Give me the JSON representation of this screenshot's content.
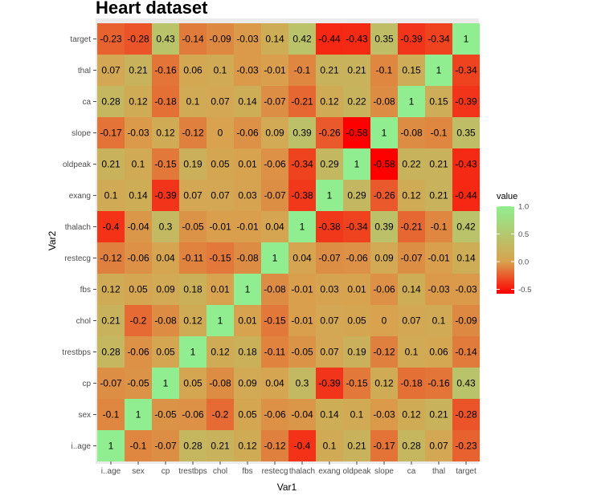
{
  "chart_data": {
    "type": "heatmap",
    "title": "Heart dataset",
    "xlabel": "Var1",
    "ylabel": "Var2",
    "x_categories": [
      "i..age",
      "sex",
      "cp",
      "trestbps",
      "chol",
      "fbs",
      "restecg",
      "thalach",
      "exang",
      "oldpeak",
      "slope",
      "ca",
      "thal",
      "target"
    ],
    "y_categories": [
      "i..age",
      "sex",
      "cp",
      "trestbps",
      "chol",
      "fbs",
      "restecg",
      "thalach",
      "exang",
      "oldpeak",
      "slope",
      "ca",
      "thal",
      "target"
    ],
    "values": [
      [
        1,
        -0.1,
        -0.07,
        0.28,
        0.21,
        0.12,
        -0.12,
        -0.4,
        0.1,
        0.21,
        -0.17,
        0.28,
        0.07,
        -0.23
      ],
      [
        -0.1,
        1,
        -0.05,
        -0.06,
        -0.2,
        0.05,
        -0.06,
        -0.04,
        0.14,
        0.1,
        -0.03,
        0.12,
        0.21,
        -0.28
      ],
      [
        -0.07,
        -0.05,
        1,
        0.05,
        -0.08,
        0.09,
        0.04,
        0.3,
        -0.39,
        -0.15,
        0.12,
        -0.18,
        -0.16,
        0.43
      ],
      [
        0.28,
        -0.06,
        0.05,
        1,
        0.12,
        0.18,
        -0.11,
        -0.05,
        0.07,
        0.19,
        -0.12,
        0.1,
        0.06,
        -0.14
      ],
      [
        0.21,
        -0.2,
        -0.08,
        0.12,
        1,
        0.01,
        -0.15,
        -0.01,
        0.07,
        0.05,
        0,
        0.07,
        0.1,
        -0.09
      ],
      [
        0.12,
        0.05,
        0.09,
        0.18,
        0.01,
        1,
        -0.08,
        -0.01,
        0.03,
        0.01,
        -0.06,
        0.14,
        -0.03,
        -0.03
      ],
      [
        -0.12,
        -0.06,
        0.04,
        -0.11,
        -0.15,
        -0.08,
        1,
        0.04,
        -0.07,
        -0.06,
        0.09,
        -0.07,
        -0.01,
        0.14
      ],
      [
        -0.4,
        -0.04,
        0.3,
        -0.05,
        -0.01,
        -0.01,
        0.04,
        1,
        -0.38,
        -0.34,
        0.39,
        -0.21,
        -0.1,
        0.42
      ],
      [
        0.1,
        0.14,
        -0.39,
        0.07,
        0.07,
        0.03,
        -0.07,
        -0.38,
        1,
        0.29,
        -0.26,
        0.12,
        0.21,
        -0.44
      ],
      [
        0.21,
        0.1,
        -0.15,
        0.19,
        0.05,
        0.01,
        -0.06,
        -0.34,
        0.29,
        1,
        -0.58,
        0.22,
        0.21,
        -0.43
      ],
      [
        -0.17,
        -0.03,
        0.12,
        -0.12,
        0,
        -0.06,
        0.09,
        0.39,
        -0.26,
        -0.58,
        1,
        -0.08,
        -0.1,
        0.35
      ],
      [
        0.28,
        0.12,
        -0.18,
        0.1,
        0.07,
        0.14,
        -0.07,
        -0.21,
        0.12,
        0.22,
        -0.08,
        1,
        0.15,
        -0.39
      ],
      [
        0.07,
        0.21,
        -0.16,
        0.06,
        0.1,
        -0.03,
        -0.01,
        -0.1,
        0.21,
        0.21,
        -0.1,
        0.15,
        1,
        -0.34
      ],
      [
        -0.23,
        -0.28,
        0.43,
        -0.14,
        -0.09,
        -0.03,
        0.14,
        0.42,
        -0.44,
        -0.43,
        0.35,
        -0.39,
        -0.34,
        1
      ]
    ],
    "legend": {
      "title": "value",
      "placement": "right",
      "ticks": [
        "1.0",
        "0.5",
        "0.0",
        "-0.5"
      ],
      "tick_values": [
        1.0,
        0.5,
        0.0,
        -0.5
      ],
      "range": [
        -0.58,
        1.0
      ]
    },
    "colors": {
      "low": "#ff0000",
      "mid": "#d8a24e",
      "high": "#90ee90",
      "panel_background": "#ebebeb",
      "tick_color": "#4d4d4d"
    },
    "grid": false
  }
}
